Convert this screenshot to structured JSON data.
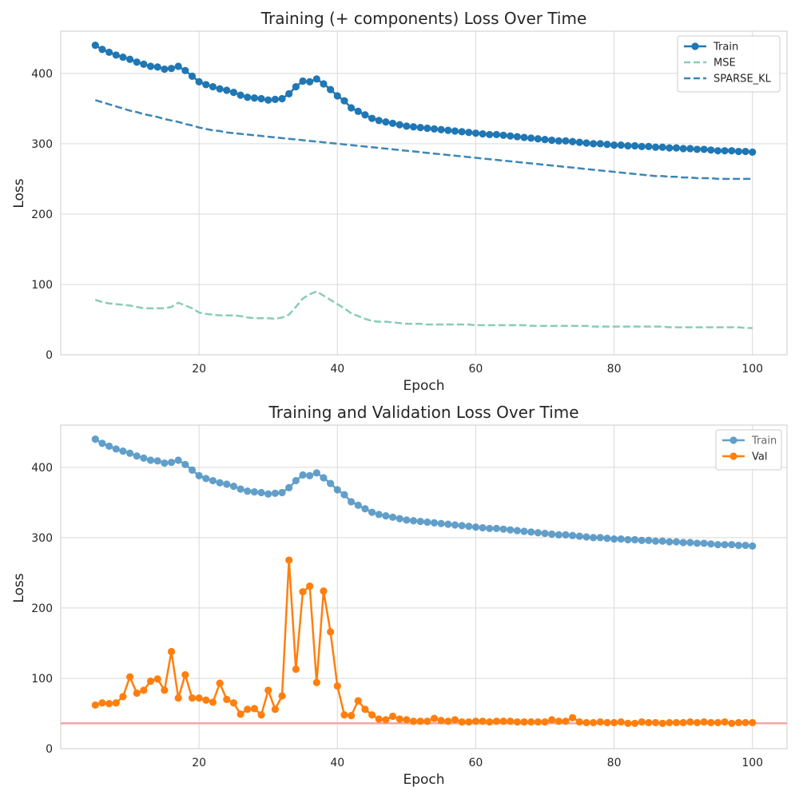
{
  "chart_data": [
    {
      "type": "line",
      "title": "Training (+ components) Loss Over Time",
      "xlabel": "Epoch",
      "ylabel": "Loss",
      "xlim": [
        0,
        105
      ],
      "ylim": [
        0,
        460
      ],
      "xticks": [
        20,
        40,
        60,
        80,
        100
      ],
      "yticks": [
        0,
        100,
        200,
        300,
        400
      ],
      "grid": true,
      "legend": "top-right",
      "x": [
        5,
        6,
        7,
        8,
        9,
        10,
        11,
        12,
        13,
        14,
        15,
        16,
        17,
        18,
        19,
        20,
        21,
        22,
        23,
        24,
        25,
        26,
        27,
        28,
        29,
        30,
        31,
        32,
        33,
        34,
        35,
        36,
        37,
        38,
        39,
        40,
        41,
        42,
        43,
        44,
        45,
        46,
        47,
        48,
        49,
        50,
        51,
        52,
        53,
        54,
        55,
        56,
        57,
        58,
        59,
        60,
        61,
        62,
        63,
        64,
        65,
        66,
        67,
        68,
        69,
        70,
        71,
        72,
        73,
        74,
        75,
        76,
        77,
        78,
        79,
        80,
        81,
        82,
        83,
        84,
        85,
        86,
        87,
        88,
        89,
        90,
        91,
        92,
        93,
        94,
        95,
        96,
        97,
        98,
        99,
        100
      ],
      "series": [
        {
          "name": "Train",
          "color": "#1f77b4",
          "style": "solid-markers",
          "values": [
            440,
            434,
            430,
            426,
            423,
            420,
            416,
            413,
            410,
            409,
            406,
            407,
            410,
            404,
            396,
            388,
            384,
            381,
            378,
            376,
            373,
            369,
            366,
            365,
            364,
            362,
            363,
            364,
            371,
            381,
            389,
            388,
            392,
            385,
            377,
            368,
            361,
            351,
            346,
            341,
            336,
            333,
            331,
            329,
            327,
            325,
            324,
            323,
            322,
            321,
            320,
            319,
            318,
            317,
            316,
            315,
            314,
            313,
            313,
            312,
            311,
            310,
            309,
            308,
            307,
            306,
            305,
            304,
            304,
            303,
            302,
            301,
            300,
            300,
            299,
            298,
            298,
            297,
            297,
            296,
            296,
            295,
            295,
            294,
            294,
            293,
            293,
            292,
            292,
            291,
            290,
            290,
            290,
            289,
            289,
            288
          ]
        },
        {
          "name": "MSE",
          "color": "#88cdb6",
          "style": "dashed",
          "values": [
            78,
            75,
            73,
            72,
            71,
            70,
            68,
            66,
            66,
            66,
            66,
            68,
            74,
            70,
            66,
            60,
            58,
            57,
            56,
            56,
            56,
            55,
            53,
            52,
            52,
            52,
            51,
            53,
            57,
            68,
            80,
            86,
            90,
            84,
            78,
            72,
            66,
            59,
            55,
            51,
            48,
            47,
            47,
            46,
            45,
            44,
            44,
            44,
            43,
            43,
            43,
            43,
            43,
            43,
            43,
            42,
            42,
            42,
            42,
            42,
            42,
            42,
            42,
            41,
            41,
            41,
            41,
            41,
            41,
            41,
            41,
            41,
            40,
            40,
            40,
            40,
            40,
            40,
            40,
            40,
            40,
            40,
            40,
            39,
            39,
            39,
            39,
            39,
            39,
            39,
            39,
            39,
            39,
            39,
            38,
            38
          ]
        },
        {
          "name": "SPARSE_KL",
          "color": "#3b86b8",
          "style": "dashed",
          "values": [
            362,
            359,
            356,
            353,
            350,
            347,
            345,
            342,
            340,
            338,
            335,
            333,
            331,
            328,
            326,
            323,
            321,
            319,
            318,
            316,
            315,
            314,
            313,
            312,
            311,
            310,
            309,
            308,
            307,
            306,
            305,
            304,
            303,
            302,
            301,
            300,
            299,
            298,
            297,
            296,
            295,
            294,
            293,
            292,
            291,
            290,
            289,
            288,
            287,
            286,
            285,
            284,
            283,
            282,
            281,
            280,
            279,
            278,
            277,
            276,
            275,
            274,
            273,
            272,
            271,
            270,
            269,
            268,
            267,
            266,
            265,
            264,
            263,
            262,
            261,
            260,
            259,
            258,
            257,
            256,
            255,
            254,
            254,
            253,
            253,
            252,
            252,
            251,
            251,
            251,
            250,
            250,
            250,
            250,
            250,
            250
          ]
        }
      ]
    },
    {
      "type": "line",
      "title": "Training and Validation Loss Over Time",
      "xlabel": "Epoch",
      "ylabel": "Loss",
      "xlim": [
        0,
        105
      ],
      "ylim": [
        0,
        460
      ],
      "xticks": [
        20,
        40,
        60,
        80,
        100
      ],
      "yticks": [
        0,
        100,
        200,
        300,
        400
      ],
      "grid": true,
      "legend": "top-right",
      "hline": {
        "y": 36,
        "color": "#f4a6a6"
      },
      "x": [
        5,
        6,
        7,
        8,
        9,
        10,
        11,
        12,
        13,
        14,
        15,
        16,
        17,
        18,
        19,
        20,
        21,
        22,
        23,
        24,
        25,
        26,
        27,
        28,
        29,
        30,
        31,
        32,
        33,
        34,
        35,
        36,
        37,
        38,
        39,
        40,
        41,
        42,
        43,
        44,
        45,
        46,
        47,
        48,
        49,
        50,
        51,
        52,
        53,
        54,
        55,
        56,
        57,
        58,
        59,
        60,
        61,
        62,
        63,
        64,
        65,
        66,
        67,
        68,
        69,
        70,
        71,
        72,
        73,
        74,
        75,
        76,
        77,
        78,
        79,
        80,
        81,
        82,
        83,
        84,
        85,
        86,
        87,
        88,
        89,
        90,
        91,
        92,
        93,
        94,
        95,
        96,
        97,
        98,
        99,
        100
      ],
      "series": [
        {
          "name": "Train",
          "color": "#1f77b4",
          "opacity": 0.7,
          "style": "solid-markers",
          "values": [
            440,
            434,
            430,
            426,
            423,
            420,
            416,
            413,
            410,
            409,
            406,
            407,
            410,
            404,
            396,
            388,
            384,
            381,
            378,
            376,
            373,
            369,
            366,
            365,
            364,
            362,
            363,
            364,
            371,
            381,
            389,
            388,
            392,
            385,
            377,
            368,
            361,
            351,
            346,
            341,
            336,
            333,
            331,
            329,
            327,
            325,
            324,
            323,
            322,
            321,
            320,
            319,
            318,
            317,
            316,
            315,
            314,
            313,
            313,
            312,
            311,
            310,
            309,
            308,
            307,
            306,
            305,
            304,
            304,
            303,
            302,
            301,
            300,
            300,
            299,
            298,
            298,
            297,
            297,
            296,
            296,
            295,
            295,
            294,
            294,
            293,
            293,
            292,
            292,
            291,
            290,
            290,
            290,
            289,
            289,
            288
          ]
        },
        {
          "name": "Val",
          "color": "#ff7f0e",
          "opacity": 1,
          "style": "solid-markers",
          "values": [
            62,
            65,
            64,
            65,
            74,
            102,
            79,
            83,
            96,
            99,
            83,
            138,
            72,
            105,
            72,
            72,
            69,
            66,
            93,
            70,
            65,
            49,
            56,
            57,
            48,
            83,
            56,
            75,
            268,
            113,
            223,
            231,
            94,
            224,
            166,
            89,
            48,
            47,
            68,
            56,
            48,
            42,
            41,
            46,
            42,
            41,
            39,
            39,
            39,
            43,
            40,
            39,
            41,
            38,
            38,
            39,
            39,
            38,
            39,
            39,
            39,
            38,
            38,
            38,
            38,
            38,
            41,
            39,
            39,
            44,
            38,
            37,
            37,
            38,
            37,
            37,
            38,
            36,
            36,
            38,
            37,
            37,
            36,
            37,
            37,
            37,
            38,
            37,
            38,
            37,
            37,
            38,
            36,
            37,
            37,
            37
          ]
        }
      ]
    }
  ]
}
